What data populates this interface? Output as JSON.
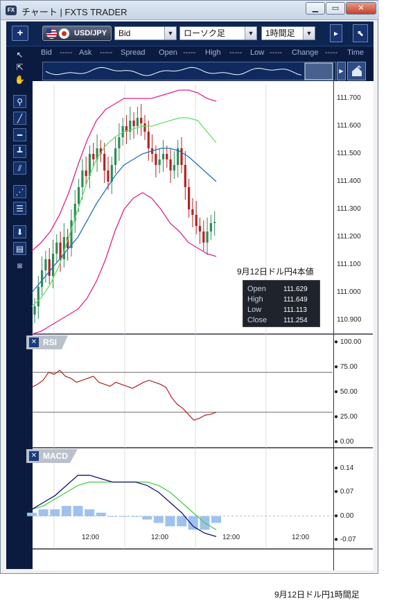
{
  "window": {
    "title": "チャート | FXTS TRADER",
    "app_icon": "FX"
  },
  "toolbar": {
    "add_label": "+",
    "symbol": "USD/JPY",
    "price_side": "Bid",
    "chart_type": "ローソク足",
    "timeframe": "1時間足"
  },
  "quotes_header": {
    "bid_label": "Bid",
    "bid_value": "-----",
    "ask_label": "Ask",
    "ask_value": "-----",
    "spread_label": "Spread",
    "open_label": "Open",
    "open_value": "-----",
    "high_label": "High",
    "high_value": "-----",
    "low_label": "Low",
    "low_value": "-----",
    "change_label": "Change",
    "change_value": "-----",
    "time_label": "Time"
  },
  "price_axis": [
    "111.700",
    "111.600",
    "111.500",
    "111.400",
    "111.300",
    "111.200",
    "111.100",
    "111.000",
    "110.900"
  ],
  "rsi_axis": [
    "100.00",
    "75.00",
    "50.00",
    "25.00",
    "0.00"
  ],
  "macd_axis": [
    "0.14",
    "0.07",
    "0.00",
    "-0.07"
  ],
  "time_axis": [
    "12:00",
    "12:00",
    "12:00",
    "12:00"
  ],
  "rsi_panel": {
    "label": "RSI",
    "close_label": "✕"
  },
  "macd_panel": {
    "label": "MACD",
    "close_label": "✕"
  },
  "annotation": "9月12日ドル円4本値",
  "ohlc_box": {
    "open_label": "Open",
    "open": "111.629",
    "high_label": "High",
    "high": "111.649",
    "low_label": "Low",
    "low": "111.113",
    "close_label": "Close",
    "close": "111.254"
  },
  "caption": "9月12日ドル円1時間足",
  "colors": {
    "bull": "#2e8b57",
    "bear": "#b22222",
    "upper_band": "#e0218a",
    "mid_band": "#66dd66",
    "ma": "#1f6fbf",
    "rsi": "#b02020",
    "macd": "#101070",
    "signal": "#44cc44",
    "hist": "#9ec2ef"
  },
  "chart_data": [
    {
      "type": "line",
      "title": "",
      "ylim": [
        110.85,
        111.75
      ],
      "candles_close": [
        110.95,
        111.02,
        111.08,
        111.12,
        111.06,
        111.14,
        111.18,
        111.12,
        111.2,
        111.16,
        111.26,
        111.32,
        111.38,
        111.44,
        111.42,
        111.5,
        111.48,
        111.52,
        111.5,
        111.44,
        111.4,
        111.46,
        111.52,
        111.56,
        111.6,
        111.58,
        111.62,
        111.6,
        111.63,
        111.61,
        111.58,
        111.52,
        111.5,
        111.46,
        111.48,
        111.5,
        111.48,
        111.44,
        111.46,
        111.52,
        111.46,
        111.38,
        111.3,
        111.28,
        111.24,
        111.22,
        111.18,
        111.22,
        111.25,
        111.254
      ],
      "series": [
        {
          "name": "upper_band",
          "values": [
            111.15,
            111.18,
            111.22,
            111.28,
            111.36,
            111.46,
            111.55,
            111.62,
            111.66,
            111.68,
            111.7,
            111.7,
            111.7,
            111.7,
            111.71,
            111.72,
            111.73,
            111.73,
            111.72,
            111.7,
            111.69
          ]
        },
        {
          "name": "mid_band",
          "values": [
            110.95,
            110.98,
            111.03,
            111.1,
            111.2,
            111.3,
            111.4,
            111.48,
            111.53,
            111.56,
            111.58,
            111.59,
            111.6,
            111.6,
            111.61,
            111.62,
            111.63,
            111.63,
            111.62,
            111.58,
            111.54
          ]
        },
        {
          "name": "ma",
          "values": [
            111.0,
            111.04,
            111.08,
            111.12,
            111.16,
            111.2,
            111.26,
            111.32,
            111.37,
            111.42,
            111.46,
            111.48,
            111.5,
            111.51,
            111.52,
            111.52,
            111.51,
            111.49,
            111.46,
            111.43,
            111.4
          ]
        },
        {
          "name": "lower_band",
          "values": [
            110.85,
            110.86,
            110.88,
            110.9,
            110.92,
            110.94,
            110.98,
            111.04,
            111.12,
            111.22,
            111.3,
            111.34,
            111.36,
            111.34,
            111.3,
            111.25,
            111.22,
            111.18,
            111.16,
            111.14,
            111.13
          ]
        }
      ]
    },
    {
      "type": "line",
      "title": "",
      "ylim": [
        0,
        100
      ],
      "levels": [
        70,
        30
      ],
      "series": [
        {
          "name": "RSI",
          "values": [
            55,
            58,
            62,
            70,
            68,
            72,
            66,
            64,
            60,
            62,
            64,
            66,
            60,
            58,
            56,
            60,
            58,
            56,
            54,
            57,
            60,
            62,
            60,
            58,
            55,
            45,
            38,
            34,
            28,
            22,
            24,
            27,
            28,
            30
          ]
        }
      ]
    },
    {
      "type": "line",
      "title": "",
      "ylim": [
        -0.08,
        0.16
      ],
      "series": [
        {
          "name": "MACD",
          "values": [
            0.02,
            0.04,
            0.06,
            0.09,
            0.12,
            0.12,
            0.11,
            0.1,
            0.1,
            0.1,
            0.09,
            0.07,
            0.04,
            0.01,
            -0.03,
            -0.05,
            -0.06
          ]
        },
        {
          "name": "Signal",
          "values": [
            0.02,
            0.03,
            0.05,
            0.07,
            0.09,
            0.1,
            0.1,
            0.1,
            0.1,
            0.1,
            0.1,
            0.09,
            0.07,
            0.04,
            0.01,
            -0.02,
            -0.04
          ]
        },
        {
          "name": "Histogram",
          "values": [
            0.01,
            0.02,
            0.02,
            0.03,
            0.03,
            0.02,
            0.01,
            0.0,
            0.0,
            0.0,
            -0.01,
            -0.02,
            -0.03,
            -0.03,
            -0.04,
            -0.04,
            -0.02
          ]
        }
      ]
    }
  ]
}
